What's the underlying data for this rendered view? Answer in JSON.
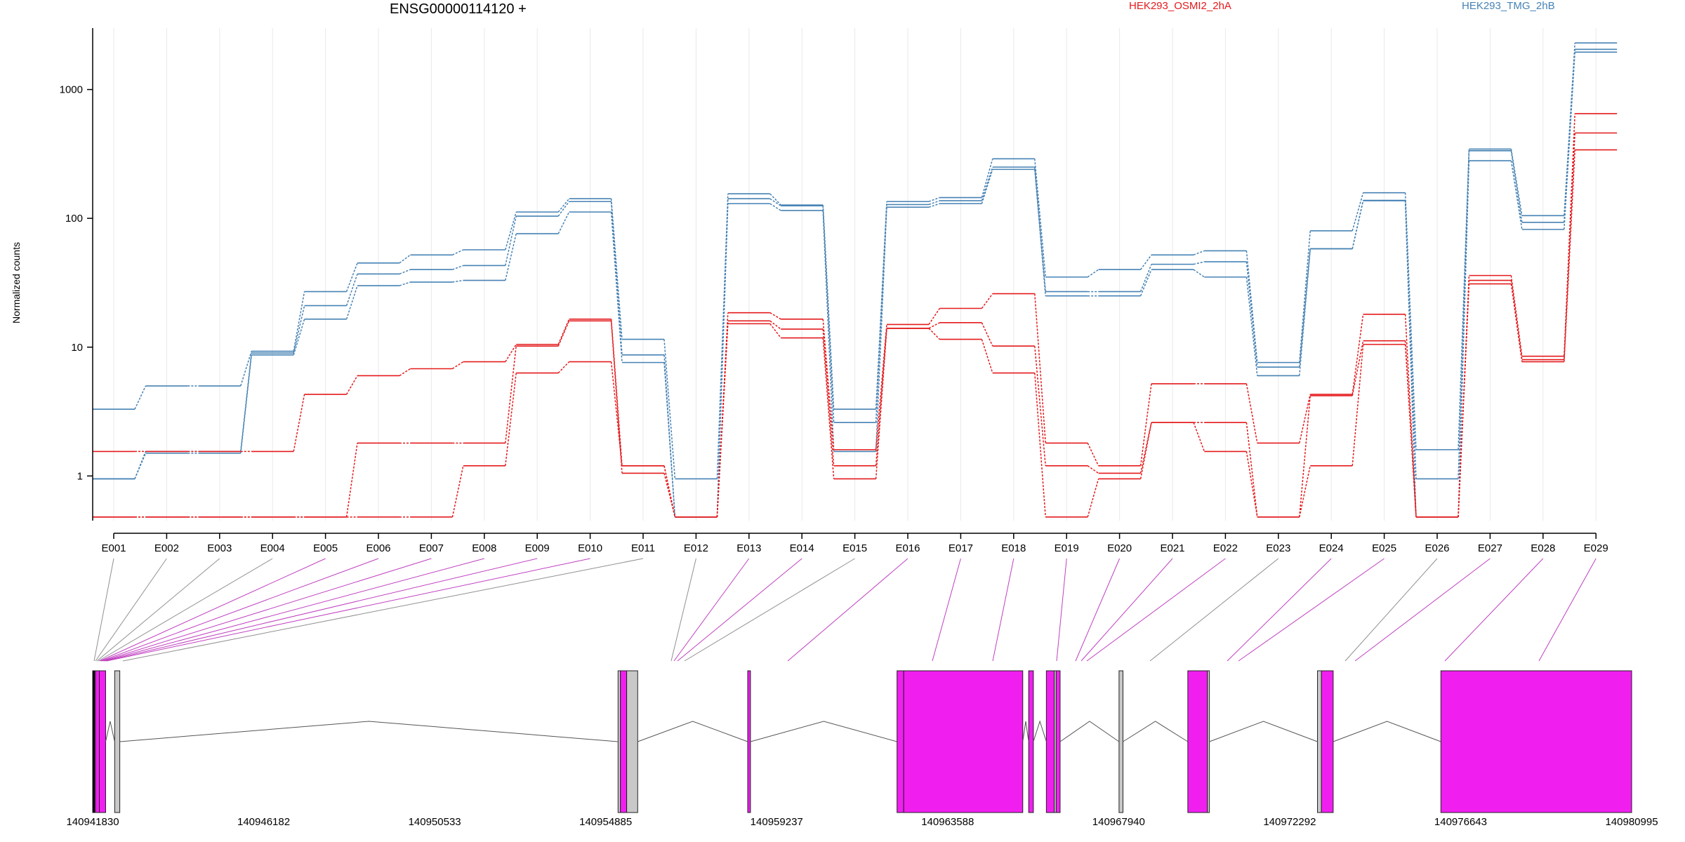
{
  "chart_data": {
    "type": "line",
    "title": "ENSG00000114120 +",
    "ylabel": "Normalized counts",
    "xlabel": "",
    "yscale": "log",
    "ylim": [
      0.45,
      3000
    ],
    "yticks": [
      1,
      10,
      100,
      1000
    ],
    "ytick_labels": [
      "1",
      "10",
      "100",
      "1000"
    ],
    "grid": "vertical lines at exon bins",
    "legend_placement": "top-right",
    "categories": [
      "E001",
      "E002",
      "E003",
      "E004",
      "E005",
      "E006",
      "E007",
      "E008",
      "E009",
      "E010",
      "E011",
      "E012",
      "E013",
      "E014",
      "E015",
      "E016",
      "E017",
      "E018",
      "E019",
      "E020",
      "E021",
      "E022",
      "E023",
      "E024",
      "E025",
      "E026",
      "E027",
      "E028",
      "E029"
    ],
    "series": [
      {
        "name": "HEK293_TMG_2hB",
        "color": "#4682b4",
        "values": [
          3.3,
          5.0,
          5.0,
          9.3,
          27,
          45,
          52,
          57,
          112,
          142,
          11.5,
          0.95,
          155,
          127,
          3.3,
          135,
          145,
          290,
          35,
          40,
          52,
          56,
          7.6,
          80,
          158,
          1.6,
          345,
          105,
          2300
        ]
      },
      {
        "color": "#4682b4",
        "values": [
          0.95,
          1.55,
          1.55,
          9.0,
          21,
          37,
          40,
          43,
          104,
          135,
          8.7,
          0.48,
          142,
          125,
          2.6,
          128,
          137,
          250,
          27,
          27,
          44,
          46,
          7.0,
          58,
          138,
          0.95,
          335,
          93,
          2050
        ]
      },
      {
        "color": "#4682b4",
        "values": [
          0.95,
          1.5,
          1.5,
          8.7,
          16.5,
          30,
          32,
          33,
          76,
          112,
          7.6,
          0.48,
          130,
          115,
          1.55,
          122,
          130,
          240,
          25,
          25,
          40,
          35,
          6.0,
          58,
          137,
          0.48,
          280,
          82,
          1950
        ]
      },
      {
        "name": "HEK293_OSMI2_2hA",
        "color": "#e41a1c",
        "values": [
          1.55,
          1.55,
          1.55,
          1.55,
          4.3,
          6.0,
          6.8,
          7.7,
          10.5,
          16.5,
          1.2,
          0.48,
          18.5,
          16.5,
          1.6,
          15,
          20,
          26,
          1.8,
          1.2,
          5.2,
          5.2,
          1.8,
          4.3,
          18,
          0.48,
          36,
          8.5,
          650
        ]
      },
      {
        "color": "#e41a1c",
        "values": [
          0.48,
          0.48,
          0.48,
          0.48,
          0.48,
          1.8,
          1.8,
          1.8,
          10.2,
          16.0,
          1.05,
          0.48,
          16.0,
          13.8,
          1.2,
          14,
          15.5,
          10.2,
          1.2,
          1.05,
          2.6,
          2.6,
          0.48,
          4.2,
          11.2,
          0.48,
          33,
          8.0,
          460
        ]
      },
      {
        "color": "#e41a1c",
        "values": [
          0.48,
          0.48,
          0.48,
          0.48,
          0.48,
          0.48,
          0.48,
          1.2,
          6.3,
          7.7,
          1.2,
          0.48,
          15.2,
          11.8,
          0.95,
          14,
          11.5,
          6.3,
          0.48,
          0.95,
          2.6,
          1.55,
          0.48,
          1.2,
          10.5,
          0.48,
          31,
          7.7,
          340
        ]
      }
    ],
    "genomic_axis": {
      "tick_labels": [
        "140941830",
        "140946182",
        "140950533",
        "140954885",
        "140959237",
        "140963588",
        "140967940",
        "140972292",
        "140976643",
        "140980995"
      ],
      "range": [
        140941830,
        140980995
      ]
    },
    "exon_label_colors": [
      "#909090",
      "#909090",
      "#909090",
      "#909090",
      "#c040c0",
      "#c040c0",
      "#c040c0",
      "#c040c0",
      "#c040c0",
      "#c040c0",
      "#909090",
      "#909090",
      "#c040c0",
      "#c040c0",
      "#909090",
      "#c040c0",
      "#c040c0",
      "#c040c0",
      "#c040c0",
      "#c040c0",
      "#c040c0",
      "#c040c0",
      "#909090",
      "#c040c0",
      "#c040c0",
      "#909090",
      "#c040c0",
      "#c040c0",
      "#c040c0"
    ],
    "colors": {
      "significant": "#f01ff0",
      "non_significant": "#c8c8c8",
      "first_series": "#4682b4",
      "second_series": "#e41a1c"
    }
  }
}
